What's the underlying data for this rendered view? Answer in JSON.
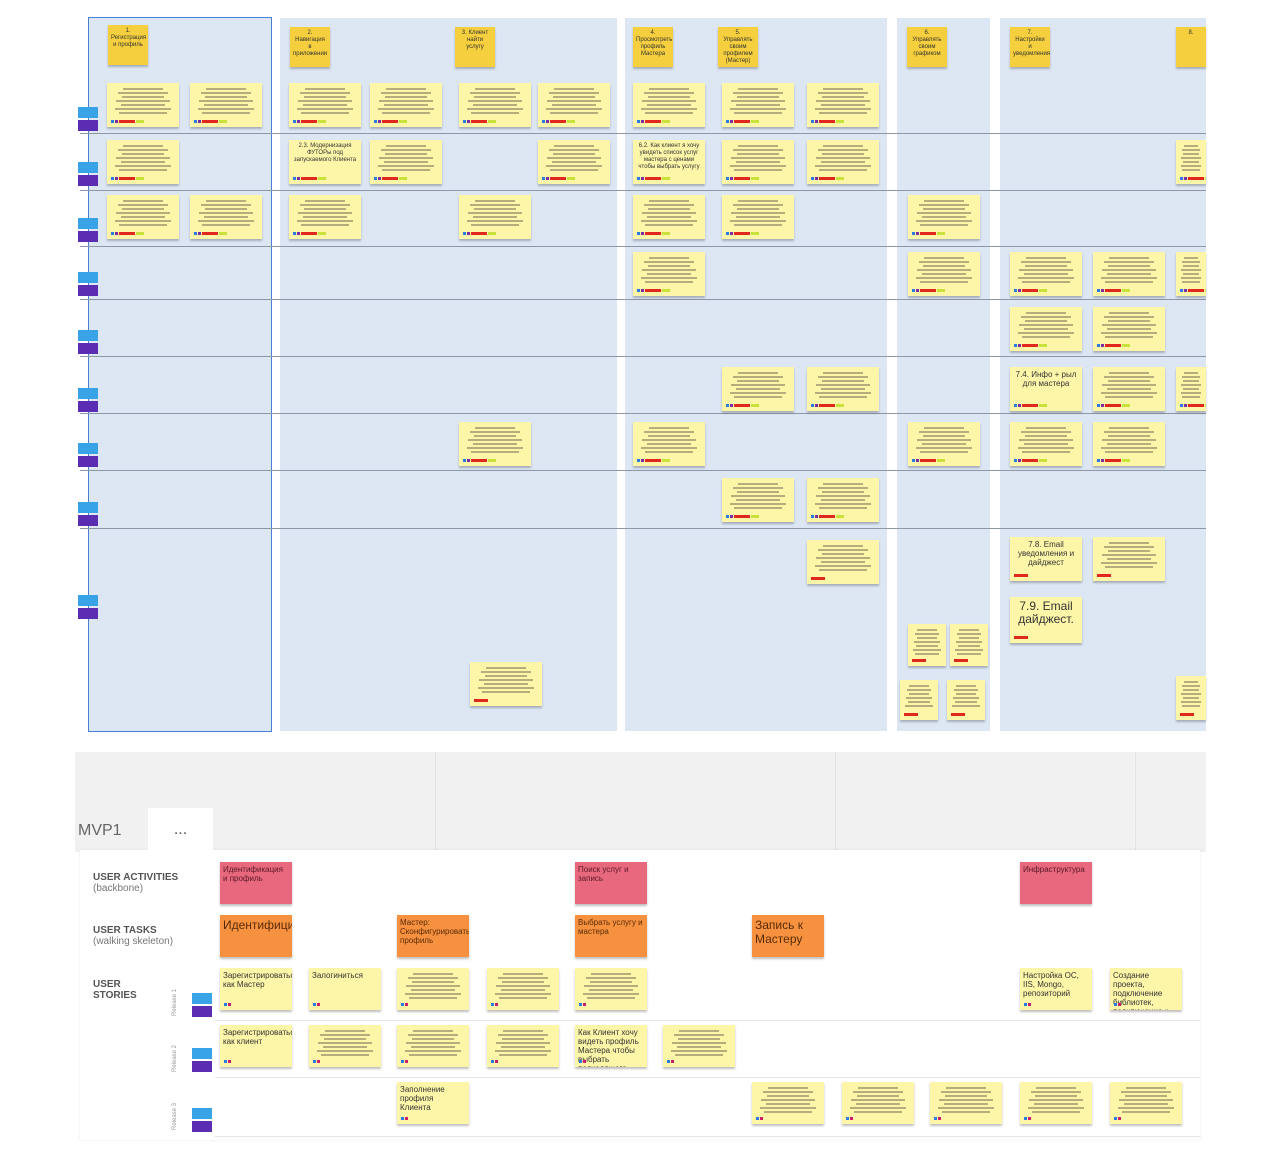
{
  "board": {
    "headers": [
      "1. Регистрация и профиль",
      "2. Навигация в приложении",
      "3. Клиент найти услугу",
      "4. Просмотреть профиль Мастера",
      "5. Управлять своим профилем (Мастер)",
      "6. Управлять своим графиком",
      "7. Настройки и уведомления",
      "8."
    ],
    "notes": [
      "",
      "",
      "",
      "",
      "",
      "",
      "",
      "",
      "",
      "",
      "2.3. Модернизация ФУТОРы под запускаемого Клиента",
      "",
      "",
      "6.2. Как клиент я хочу увидеть список услуг мастера с ценами чтобы выбрать услугу",
      "",
      "",
      "",
      "",
      "",
      "",
      "",
      "",
      "",
      "",
      "",
      "",
      "",
      "",
      "",
      "",
      "",
      "",
      "",
      "7.4. Инфо + рыл для мастера",
      "",
      "",
      "",
      "",
      "",
      "",
      "",
      "",
      "",
      "",
      "7.8. Email уведомления и дайджест",
      "",
      "7.9. Email дайджест.",
      "",
      "",
      "",
      "",
      "",
      ""
    ]
  },
  "mvp": {
    "title": "MVP1",
    "more_label": "...",
    "rows": {
      "activities": "USER ACTIVITIES",
      "activities_sub": "(backbone)",
      "tasks": "USER TASKS",
      "tasks_sub": "(walking skeleton)",
      "stories": "USER STORIES"
    },
    "releases": [
      "Release 1",
      "Release 2",
      "Release 3"
    ],
    "activities": [
      "Идентификация и профиль",
      "Поиск услуг и запись",
      "Инфраструктура"
    ],
    "tasks": [
      "Идентифицироваться",
      "Мастер: Сконфигурировать профиль",
      "Выбрать услугу и мастера",
      "Запись к Мастеру"
    ],
    "stories": [
      "Зарегистрироваться как Мастер",
      "Залогиниться",
      "",
      "",
      "",
      "Настройка ОС, IIS, Mongo, репозиторий",
      "Создание проекта, подключение библиотек, подключение к SMTP",
      "Зарегистрироваться как клиент",
      "",
      "",
      "",
      "Как Клиент хочу видеть профиль Мастера чтобы выбрать подходящего Мастера",
      "",
      "Заполнение профиля Клиента",
      "",
      "",
      "",
      "",
      ""
    ]
  },
  "colors": {
    "lane": "#dde7f4",
    "sticky": "#fdf6a8",
    "header_sticky": "#f5cf3d",
    "activity": "#e8687d",
    "task": "#f6923f",
    "tag_blue": "#38a3e6",
    "tag_purple": "#5a2db3"
  }
}
